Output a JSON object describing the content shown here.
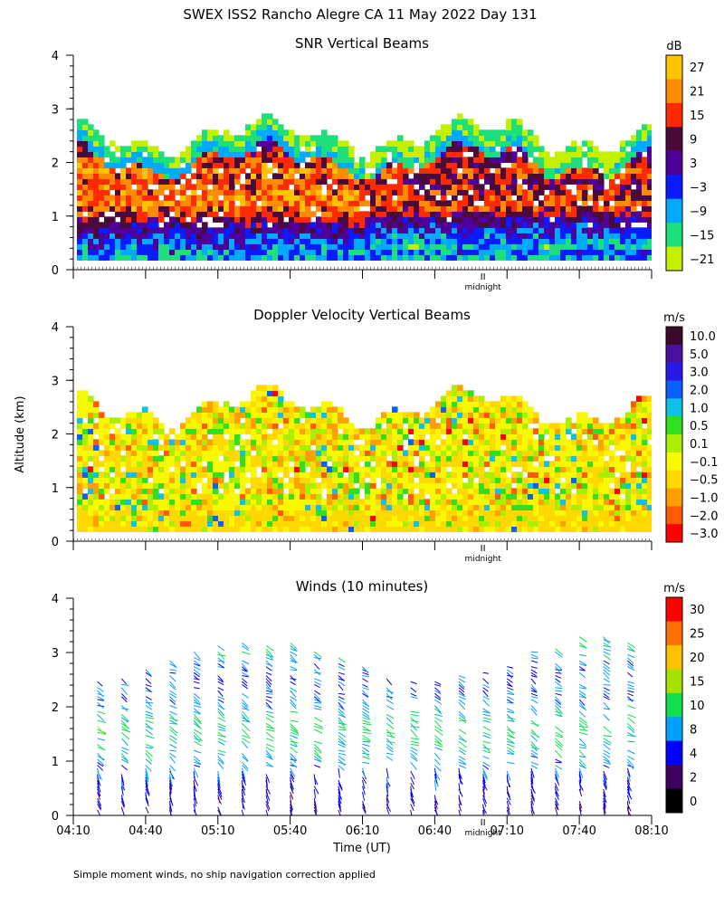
{
  "figure": {
    "title": "SWEX ISS2 Rancho Alegre CA  11 May 2022 Day 131",
    "ylabel": "Altitude (km)",
    "xlabel": "Time (UT)",
    "footnote": "Simple moment winds, no ship navigation correction applied",
    "midnight_label": "midnight",
    "midnight_time": "07:00"
  },
  "chart_data": [
    {
      "type": "heatmap",
      "title": "SNR Vertical Beams",
      "ylim": [
        0,
        4
      ],
      "yticks": [
        "0",
        "1",
        "2",
        "3",
        "4"
      ],
      "x_range": [
        "04:10",
        "08:10"
      ],
      "colorbar": {
        "unit": "dB",
        "labels": [
          "27",
          "21",
          "15",
          "9",
          "3",
          "−3",
          "−9",
          "−15",
          "−21"
        ],
        "colors": [
          "#ffc400",
          "#ff8c00",
          "#ff2a00",
          "#4a0a3c",
          "#50009a",
          "#0a1cff",
          "#00aaff",
          "#1ee07a",
          "#c4f000"
        ]
      },
      "profile_km": [
        0.2,
        0.35,
        0.5,
        0.8,
        1.0,
        1.2,
        1.4,
        1.6,
        1.8,
        2.0,
        2.2,
        2.4,
        2.5,
        2.6,
        2.7,
        2.8
      ],
      "profile_db": [
        -9,
        -6,
        -3,
        6,
        15,
        21,
        18,
        15,
        21,
        15,
        9,
        3,
        -3,
        -12,
        -18,
        -21
      ]
    },
    {
      "type": "heatmap",
      "title": "Doppler Velocity Vertical Beams",
      "ylim": [
        0,
        4
      ],
      "yticks": [
        "0",
        "1",
        "2",
        "3",
        "4"
      ],
      "x_range": [
        "04:10",
        "08:10"
      ],
      "colorbar": {
        "unit": "m/s",
        "labels": [
          "10.0",
          "5.0",
          "3.0",
          "2.0",
          "1.0",
          "0.5",
          "0.1",
          "−0.1",
          "−0.5",
          "−1.0",
          "−2.0",
          "−3.0"
        ],
        "colors": [
          "#3a0a2a",
          "#4a10a0",
          "#2a18e8",
          "#0a60ff",
          "#10c0e8",
          "#30e020",
          "#a8f000",
          "#f8f800",
          "#ffd800",
          "#ffa000",
          "#ff5a00",
          "#ff0000"
        ]
      }
    },
    {
      "type": "scatter",
      "title": "Winds (10 minutes)",
      "ylim": [
        0,
        4
      ],
      "yticks": [
        "0",
        "1",
        "2",
        "3",
        "4"
      ],
      "x_range": [
        "04:10",
        "08:10"
      ],
      "xticks": [
        "04:10",
        "04:40",
        "05:10",
        "05:40",
        "06:10",
        "06:40",
        "07:10",
        "07:40",
        "08:10"
      ],
      "colorbar": {
        "unit": "m/s",
        "labels": [
          "30",
          "25",
          "20",
          "15",
          "10",
          "8",
          "4",
          "2",
          "0"
        ],
        "colors": [
          "#ff0000",
          "#ff7000",
          "#ffc000",
          "#a8e000",
          "#10e050",
          "#00a0ff",
          "#0000ff",
          "#400060",
          "#000000"
        ]
      },
      "profile_km": [
        0.2,
        0.6,
        1.0,
        1.3,
        1.6,
        1.9,
        2.2,
        2.6,
        3.0
      ],
      "profile_speed": [
        3,
        4,
        7,
        9,
        11,
        9,
        6,
        5,
        9
      ]
    }
  ]
}
